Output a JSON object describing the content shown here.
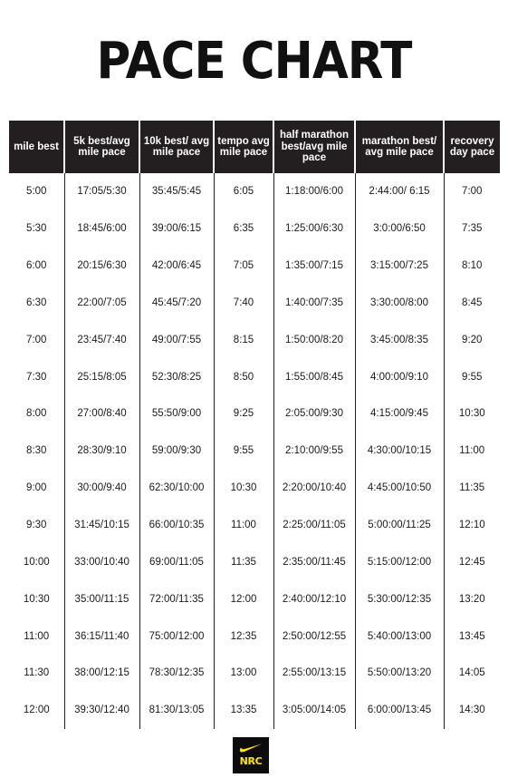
{
  "title": "PACE CHART",
  "columns": [
    "mile best",
    "5k best/avg mile pace",
    "10k best/ avg mile pace",
    "tempo avg mile pace",
    "half marathon best/avg mile pace",
    "marathon best/ avg mile pace",
    "recovery day pace"
  ],
  "rows": [
    [
      "5:00",
      "17:05/5:30",
      "35:45/5:45",
      "6:05",
      "1:18:00/6:00",
      "2:44:00/ 6:15",
      "7:00"
    ],
    [
      "5:30",
      "18:45/6:00",
      "39:00/6:15",
      "6:35",
      "1:25:00/6:30",
      "3:0:00/6:50",
      "7:35"
    ],
    [
      "6:00",
      "20:15/6:30",
      "42:00/6:45",
      "7:05",
      "1:35:00/7:15",
      "3:15:00/7:25",
      "8:10"
    ],
    [
      "6:30",
      "22:00/7:05",
      "45:45/7:20",
      "7:40",
      "1:40:00/7:35",
      "3:30:00/8:00",
      "8:45"
    ],
    [
      "7:00",
      "23:45/7:40",
      "49:00/7:55",
      "8:15",
      "1:50:00/8:20",
      "3:45:00/8:35",
      "9:20"
    ],
    [
      "7:30",
      "25:15/8:05",
      "52:30/8:25",
      "8:50",
      "1:55:00/8:45",
      "4:00:00/9:10",
      "9:55"
    ],
    [
      "8:00",
      "27:00/8:40",
      "55:50/9:00",
      "9:25",
      "2:05:00/9:30",
      "4:15:00/9:45",
      "10:30"
    ],
    [
      "8:30",
      "28:30/9:10",
      "59:00/9:30",
      "9:55",
      "2:10:00/9:55",
      "4:30:00/10:15",
      "11:00"
    ],
    [
      "9:00",
      "30:00/9:40",
      "62:30/10:00",
      "10:30",
      "2:20:00/10:40",
      "4:45:00/10:50",
      "11:35"
    ],
    [
      "9:30",
      "31:45/10:15",
      "66:00/10:35",
      "11:00",
      "2:25:00/11:05",
      "5:00:00/11:25",
      "12:10"
    ],
    [
      "10:00",
      "33:00/10:40",
      "69:00/11:05",
      "11:35",
      "2:35:00/11:45",
      "5:15:00/12:00",
      "12:45"
    ],
    [
      "10:30",
      "35:00/11:15",
      "72:00/11:35",
      "12:00",
      "2:40:00/12:10",
      "5:30:00/12:35",
      "13:20"
    ],
    [
      "11:00",
      "36:15/11:40",
      "75:00/12:00",
      "12:35",
      "2:50:00/12:55",
      "5:40:00/13:00",
      "13:45"
    ],
    [
      "11:30",
      "38:00/12:15",
      "78:30/12:35",
      "13:00",
      "2:55:00/13:15",
      "5:50:00/13:20",
      "14:05"
    ],
    [
      "12:00",
      "39:30/12:40",
      "81:30/13:05",
      "13:35",
      "3:05:00/14:05",
      "6:00:00/13:45",
      "14:30"
    ]
  ],
  "logo": {
    "text": "NRC",
    "icon": "nike-swoosh-icon",
    "background": "#0c0c0c",
    "text_color": "#ffe600"
  },
  "colors": {
    "header_bg": "#231f20",
    "header_text": "#ffffff"
  }
}
